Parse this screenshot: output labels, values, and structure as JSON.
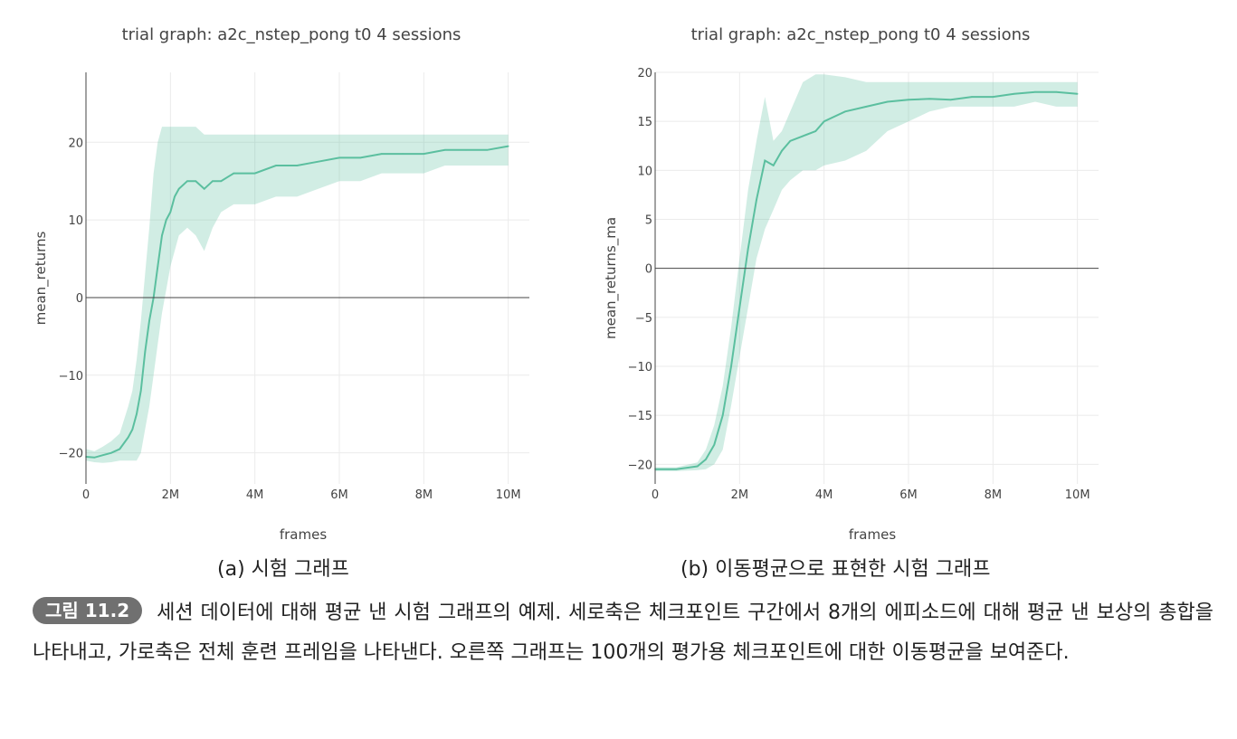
{
  "chart_data": [
    {
      "type": "line",
      "title": "trial graph: a2c_nstep_pong t0 4 sessions",
      "xlabel": "frames",
      "ylabel": "mean_returns",
      "xlim": [
        0,
        10.5
      ],
      "ylim": [
        -24,
        29
      ],
      "x_unit": "M frames",
      "x_ticks": [
        0,
        2,
        4,
        6,
        8,
        10
      ],
      "x_tick_labels": [
        "0",
        "2M",
        "4M",
        "6M",
        "8M",
        "10M"
      ],
      "y_ticks": [
        -20,
        -10,
        0,
        10,
        20
      ],
      "y_tick_labels": [
        "−20",
        "−10",
        "0",
        "10",
        "20"
      ],
      "color": "#5bbf9f",
      "band_color": "#5bbf9f",
      "series": [
        {
          "name": "mean_returns",
          "x": [
            0,
            0.2,
            0.4,
            0.6,
            0.8,
            1.0,
            1.1,
            1.2,
            1.3,
            1.4,
            1.5,
            1.6,
            1.7,
            1.8,
            1.9,
            2.0,
            2.1,
            2.2,
            2.4,
            2.6,
            2.8,
            3.0,
            3.2,
            3.5,
            4.0,
            4.5,
            5.0,
            5.5,
            6.0,
            6.5,
            7.0,
            7.5,
            8.0,
            8.5,
            9.0,
            9.5,
            10.0
          ],
          "y": [
            -20.5,
            -20.6,
            -20.3,
            -20.0,
            -19.5,
            -18.0,
            -17.0,
            -15.0,
            -12.0,
            -7.0,
            -3.0,
            0.0,
            4.0,
            8.0,
            10.0,
            11.0,
            13.0,
            14.0,
            15.0,
            15.0,
            14.0,
            15.0,
            15.0,
            16.0,
            16.0,
            17.0,
            17.0,
            17.5,
            18.0,
            18.0,
            18.5,
            18.5,
            18.5,
            19.0,
            19.0,
            19.0,
            19.5
          ],
          "upper": [
            -19.5,
            -19.8,
            -19.2,
            -18.5,
            -17.5,
            -14.0,
            -12.0,
            -8.0,
            -3.0,
            3.0,
            9.0,
            16.0,
            20.0,
            22.0,
            22.0,
            22.0,
            22.0,
            22.0,
            22.0,
            22.0,
            21.0,
            21.0,
            21.0,
            21.0,
            21.0,
            21.0,
            21.0,
            21.0,
            21.0,
            21.0,
            21.0,
            21.0,
            21.0,
            21.0,
            21.0,
            21.0,
            21.0
          ],
          "lower": [
            -21.0,
            -21.2,
            -21.3,
            -21.2,
            -21.0,
            -21.0,
            -21.0,
            -21.0,
            -20.0,
            -17.0,
            -14.0,
            -10.0,
            -6.0,
            -2.0,
            1.0,
            4.0,
            6.0,
            8.0,
            9.0,
            8.0,
            6.0,
            9.0,
            11.0,
            12.0,
            12.0,
            13.0,
            13.0,
            14.0,
            15.0,
            15.0,
            16.0,
            16.0,
            16.0,
            17.0,
            17.0,
            17.0,
            17.0
          ]
        }
      ]
    },
    {
      "type": "line",
      "title": "trial graph: a2c_nstep_pong t0 4 sessions",
      "xlabel": "frames",
      "ylabel": "mean_returns_ma",
      "xlim": [
        0,
        10.5
      ],
      "ylim": [
        -22,
        20
      ],
      "x_unit": "M frames",
      "x_ticks": [
        0,
        2,
        4,
        6,
        8,
        10
      ],
      "x_tick_labels": [
        "0",
        "2M",
        "4M",
        "6M",
        "8M",
        "10M"
      ],
      "y_ticks": [
        -20,
        -15,
        -10,
        -5,
        0,
        5,
        10,
        15,
        20
      ],
      "y_tick_labels": [
        "−20",
        "−15",
        "−10",
        "−5",
        "0",
        "5",
        "10",
        "15",
        "20"
      ],
      "color": "#5bbf9f",
      "band_color": "#5bbf9f",
      "series": [
        {
          "name": "mean_returns_ma",
          "x": [
            0,
            0.5,
            1.0,
            1.2,
            1.4,
            1.6,
            1.8,
            2.0,
            2.2,
            2.4,
            2.6,
            2.8,
            3.0,
            3.2,
            3.5,
            3.8,
            4.0,
            4.5,
            5.0,
            5.5,
            6.0,
            6.5,
            7.0,
            7.5,
            8.0,
            8.5,
            9.0,
            9.5,
            10.0
          ],
          "y": [
            -20.5,
            -20.5,
            -20.2,
            -19.5,
            -18.0,
            -15.0,
            -10.0,
            -4.0,
            2.0,
            7.0,
            11.0,
            10.5,
            12.0,
            13.0,
            13.5,
            14.0,
            15.0,
            16.0,
            16.5,
            17.0,
            17.2,
            17.3,
            17.2,
            17.5,
            17.5,
            17.8,
            18.0,
            18.0,
            17.8
          ],
          "upper": [
            -20.3,
            -20.3,
            -19.8,
            -18.5,
            -16.0,
            -12.0,
            -6.0,
            1.0,
            8.0,
            13.0,
            17.5,
            13.0,
            14.0,
            16.0,
            19.0,
            19.8,
            19.8,
            19.5,
            19.0,
            19.0,
            19.0,
            19.0,
            19.0,
            19.0,
            19.0,
            19.0,
            19.0,
            19.0,
            19.0
          ],
          "lower": [
            -20.7,
            -20.7,
            -20.6,
            -20.5,
            -20.0,
            -18.5,
            -14.0,
            -9.0,
            -4.0,
            1.0,
            4.0,
            6.0,
            8.0,
            9.0,
            10.0,
            10.0,
            10.5,
            11.0,
            12.0,
            14.0,
            15.0,
            16.0,
            16.5,
            16.5,
            16.5,
            16.5,
            17.0,
            16.5,
            16.5
          ]
        }
      ]
    }
  ],
  "subcaptions": {
    "a": "(a) 시험 그래프",
    "b": "(b) 이동평균으로 표현한 시험 그래프"
  },
  "figure": {
    "label": "그림 11.2",
    "caption": "세션 데이터에 대해 평균 낸 시험 그래프의 예제. 세로축은 체크포인트 구간에서 8개의 에피소드에 대해 평균 낸 보상의 총합을 나타내고, 가로축은 전체 훈련 프레임을 나타낸다. 오른쪽 그래프는 100개의 평가용 체크포인트에 대한 이동평균을 보여준다."
  }
}
